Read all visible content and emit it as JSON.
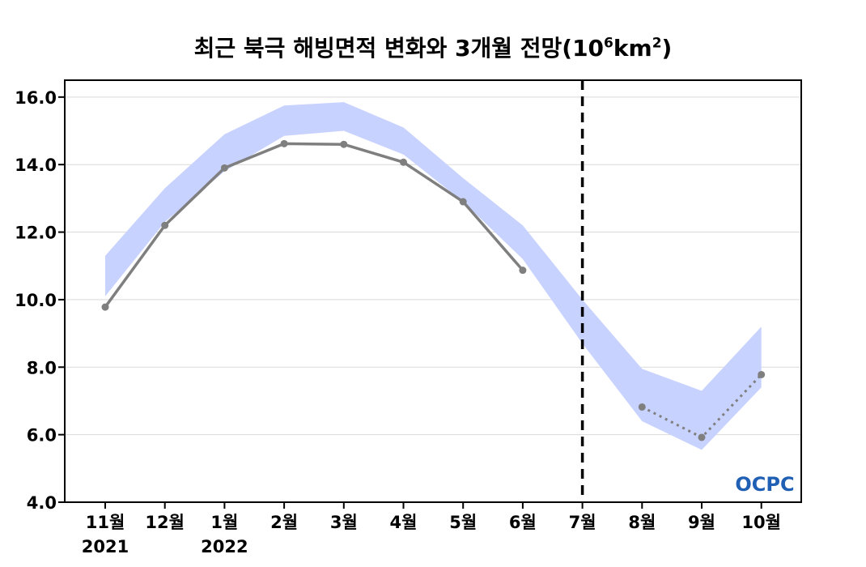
{
  "title": {
    "main": "최근 북극 해빙면적 변화와 3개월 전망(10",
    "sup1": "6",
    "mid": "km",
    "sup2": "2",
    "end": ")"
  },
  "logo_text": "OCPC",
  "colors": {
    "line": "#7f7f7f",
    "band": "#c8d2ff",
    "divider": "#000000",
    "grid": "#d9d9d9",
    "logo": "#1f5fb4"
  },
  "chart_data": {
    "type": "line",
    "categories": [
      "11월",
      "12월",
      "1월",
      "2월",
      "3월",
      "4월",
      "5월",
      "6월",
      "7월",
      "8월",
      "9월",
      "10월"
    ],
    "year_labels": [
      "2021",
      "",
      "2022",
      "",
      "",
      "",
      "",
      "",
      "",
      "",
      "",
      ""
    ],
    "ylim": [
      4.0,
      16.5
    ],
    "yticks": [
      "4.0",
      "6.0",
      "8.0",
      "10.0",
      "12.0",
      "14.0",
      "16.0"
    ],
    "grid": true,
    "forecast_divider_at": "7월",
    "band": {
      "upper": [
        11.3,
        13.3,
        14.9,
        15.75,
        15.85,
        15.1,
        13.6,
        12.2,
        10.0,
        7.95,
        7.3,
        9.2
      ],
      "lower": [
        10.1,
        12.3,
        13.8,
        14.85,
        15.0,
        14.3,
        12.9,
        11.2,
        8.7,
        6.4,
        5.55,
        7.4
      ]
    },
    "series": [
      {
        "style": "solid",
        "values": [
          9.78,
          12.2,
          13.9,
          14.62,
          14.6,
          14.07,
          12.9,
          10.87,
          null,
          null,
          null,
          null
        ]
      },
      {
        "style": "dotted",
        "values": [
          null,
          null,
          null,
          null,
          null,
          null,
          null,
          null,
          null,
          6.82,
          5.92,
          7.78
        ]
      }
    ]
  }
}
